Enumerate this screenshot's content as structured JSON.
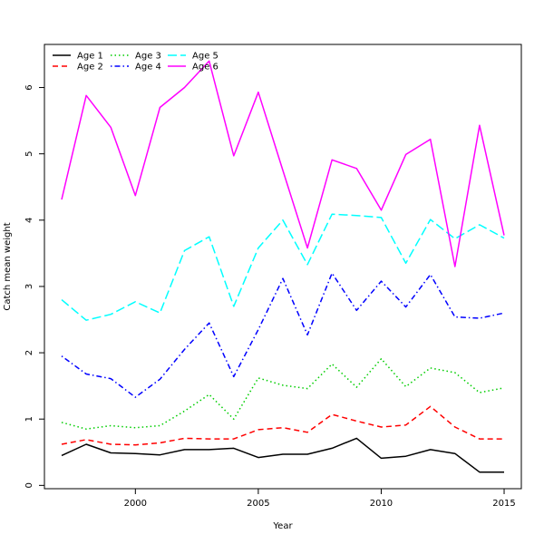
{
  "chart_data": {
    "type": "line",
    "xlabel": "Year",
    "ylabel": "Catch mean weight",
    "xlim": [
      1996.3,
      2015.7
    ],
    "ylim": [
      -0.05,
      6.65
    ],
    "x_ticks": [
      2000,
      2005,
      2010,
      2015
    ],
    "y_ticks": [
      0,
      1,
      2,
      3,
      4,
      5,
      6
    ],
    "grid": false,
    "legend_position": "top-left",
    "x": [
      1997,
      1998,
      1999,
      2000,
      2001,
      2002,
      2003,
      2004,
      2005,
      2006,
      2007,
      2008,
      2009,
      2010,
      2011,
      2012,
      2013,
      2014,
      2015
    ],
    "series": [
      {
        "name": "Age 1",
        "color": "#000000",
        "dash": "solid",
        "values": [
          0.45,
          0.62,
          0.49,
          0.48,
          0.46,
          0.54,
          0.54,
          0.56,
          0.42,
          0.47,
          0.47,
          0.56,
          0.71,
          0.41,
          0.44,
          0.54,
          0.48,
          0.2,
          0.2
        ]
      },
      {
        "name": "Age 2",
        "color": "#ff0000",
        "dash": "dashed",
        "values": [
          0.62,
          0.69,
          0.62,
          0.61,
          0.64,
          0.71,
          0.7,
          0.7,
          0.84,
          0.87,
          0.8,
          1.07,
          0.97,
          0.88,
          0.91,
          1.19,
          0.88,
          0.7,
          0.7
        ]
      },
      {
        "name": "Age 3",
        "color": "#00cd00",
        "dash": "dotted",
        "values": [
          0.95,
          0.85,
          0.9,
          0.87,
          0.9,
          1.12,
          1.37,
          1.0,
          1.62,
          1.51,
          1.46,
          1.83,
          1.48,
          1.91,
          1.49,
          1.77,
          1.7,
          1.4,
          1.47
        ]
      },
      {
        "name": "Age 4",
        "color": "#0000ff",
        "dash": "dotdash",
        "values": [
          1.95,
          1.68,
          1.61,
          1.33,
          1.6,
          2.05,
          2.45,
          1.64,
          2.35,
          3.12,
          2.27,
          3.2,
          2.64,
          3.08,
          2.69,
          3.18,
          2.54,
          2.52,
          2.6
        ]
      },
      {
        "name": "Age 5",
        "color": "#00ffff",
        "dash": "longdash",
        "values": [
          2.8,
          2.49,
          2.58,
          2.77,
          2.6,
          3.54,
          3.75,
          2.7,
          3.58,
          4.0,
          3.33,
          4.09,
          4.07,
          4.04,
          3.35,
          4.01,
          3.72,
          3.93,
          3.73
        ]
      },
      {
        "name": "Age 6",
        "color": "#ff00ff",
        "dash": "solid",
        "values": [
          4.31,
          5.88,
          5.4,
          4.37,
          5.7,
          6.0,
          6.4,
          4.97,
          5.93,
          4.75,
          3.58,
          4.91,
          4.78,
          4.15,
          4.99,
          5.22,
          3.3,
          5.43,
          3.77
        ]
      }
    ]
  }
}
